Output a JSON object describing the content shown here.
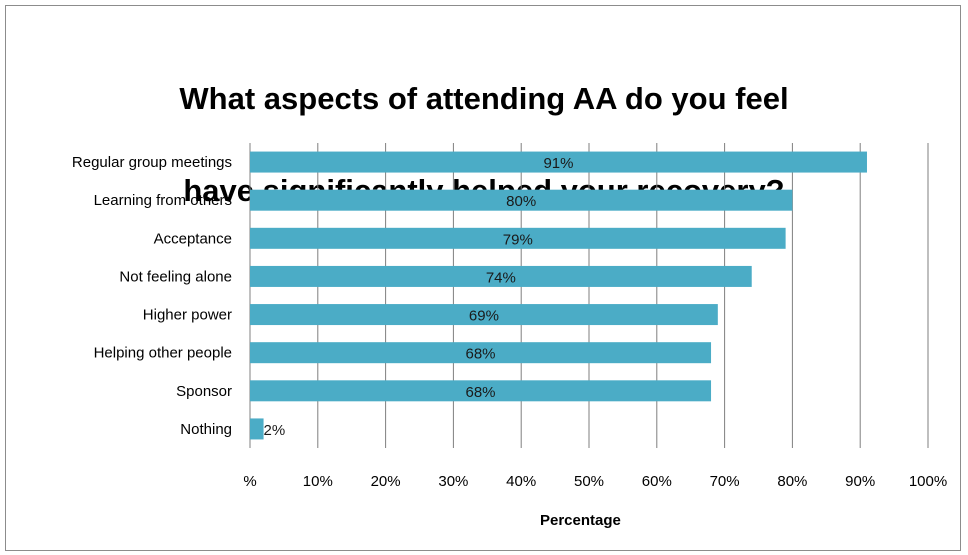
{
  "chart_data": {
    "type": "bar",
    "orientation": "horizontal",
    "title_lines": [
      "What aspects of attending AA do you feel",
      "have significantly helped your recovery?"
    ],
    "xlabel": "Percentage",
    "ylabel": "",
    "categories": [
      "Regular group meetings",
      "Learning from others",
      "Acceptance",
      "Not feeling alone",
      "Higher power",
      "Helping other people",
      "Sponsor",
      "Nothing"
    ],
    "values": [
      91,
      80,
      79,
      74,
      69,
      68,
      68,
      2
    ],
    "value_labels": [
      "91%",
      "80%",
      "79%",
      "74%",
      "69%",
      "68%",
      "68%",
      "2%"
    ],
    "x_ticks": [
      "%",
      "10%",
      "20%",
      "30%",
      "40%",
      "50%",
      "60%",
      "70%",
      "80%",
      "90%",
      "100%"
    ],
    "xlim": [
      0,
      100
    ],
    "grid": true,
    "bar_color": "#4bacc6",
    "grid_color": "#7f7f7f",
    "legend": "none"
  }
}
